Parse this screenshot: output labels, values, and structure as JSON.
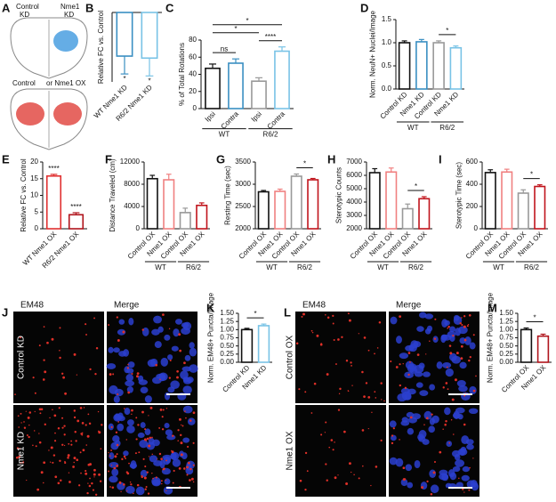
{
  "panel_a": {
    "panel": "A",
    "labels": [
      "Control",
      "KD",
      "Nme1",
      "KD",
      "Control",
      "or Nme1 OX"
    ]
  },
  "panel_j": {
    "panel": "J",
    "columns": [
      "EM48",
      "Merge"
    ],
    "rows": [
      "Control KD",
      "Nme1 KD"
    ]
  },
  "panel_l": {
    "panel": "L",
    "columns": [
      "EM48",
      "Merge"
    ],
    "rows": [
      "Control OX",
      "Nme1 OX"
    ]
  },
  "chart_data": [
    {
      "type": "bar",
      "panel": "B",
      "ylabel": "Relative FC vs. Control",
      "categories": [
        "WT Nme1 KD",
        "R6/2 Nme1 KD"
      ],
      "values": [
        -2.2,
        -2.3
      ],
      "errors": [
        0.9,
        0.9
      ],
      "colors": [
        "#3a8fc2",
        "#79c3e6"
      ],
      "ylim": [
        -3.5,
        0
      ],
      "significance": [
        "*",
        "*"
      ]
    },
    {
      "type": "bar",
      "panel": "C",
      "ylabel": "% of Total Rotations",
      "categories": [
        "Ipsi",
        "Contra",
        "Ipsi",
        "Contra"
      ],
      "values": [
        47,
        53,
        32,
        67
      ],
      "errors": [
        5,
        5,
        4,
        5
      ],
      "colors": [
        "#111111",
        "#3a8fc2",
        "#999999",
        "#79c3e6"
      ],
      "ylim": [
        0,
        80
      ],
      "yticks": [
        0,
        20,
        40,
        60,
        80
      ],
      "groups": [
        {
          "label": "WT",
          "from": 0,
          "to": 1
        },
        {
          "label": "R6/2",
          "from": 2,
          "to": 3
        }
      ],
      "brackets": [
        {
          "from": 0,
          "to": 1,
          "label": "ns"
        },
        {
          "from": 2,
          "to": 3,
          "label": "****"
        },
        {
          "from": 0,
          "to": 2,
          "label": "*"
        },
        {
          "from": 0,
          "to": 3,
          "label": "*"
        }
      ]
    },
    {
      "type": "bar",
      "panel": "D",
      "ylabel": "Norm. NeuN+ Nuclei/Image",
      "categories": [
        "Control KD",
        "Nme1 KD",
        "Control KD",
        "Nme1 KD"
      ],
      "values": [
        1.0,
        1.02,
        1.0,
        0.89
      ],
      "errors": [
        0.04,
        0.05,
        0.04,
        0.04
      ],
      "colors": [
        "#111111",
        "#3a8fc2",
        "#999999",
        "#79c3e6"
      ],
      "ylim": [
        0,
        1.5
      ],
      "yticks": [
        {
          "value": 0,
          "label": "0.0"
        },
        0.5,
        {
          "value": 1,
          "label": "1.0"
        },
        1.5
      ],
      "groups": [
        {
          "label": "WT",
          "from": 0,
          "to": 1
        },
        {
          "label": "R6/2",
          "from": 2,
          "to": 3
        }
      ],
      "brackets": [
        {
          "from": 2,
          "to": 3,
          "label": "*"
        }
      ]
    },
    {
      "type": "bar",
      "panel": "E",
      "ylabel": "Relative FC vs. Control",
      "categories": [
        "WT Nme1 OX",
        "R6/2 Nme1 OX"
      ],
      "values": [
        15.8,
        4.2
      ],
      "errors": [
        0.5,
        0.6
      ],
      "colors": [
        "#e03030",
        "#b0141c"
      ],
      "ylim": [
        0,
        20
      ],
      "yticks": [
        0,
        5,
        10,
        15,
        20
      ],
      "significance": [
        "****",
        "****"
      ]
    },
    {
      "type": "bar",
      "panel": "F",
      "ylabel": "Distance Traveled (cm)",
      "categories": [
        "Control OX",
        "Nme1 OX",
        "Control OX",
        "Nme1 OX"
      ],
      "values": [
        9000,
        8800,
        2900,
        4200
      ],
      "errors": [
        600,
        1000,
        800,
        450
      ],
      "colors": [
        "#111111",
        "#f08080",
        "#999999",
        "#c0141c"
      ],
      "ylim": [
        0,
        12000
      ],
      "yticks": [
        0,
        4000,
        8000,
        12000
      ],
      "groups": [
        {
          "label": "WT",
          "from": 0,
          "to": 1
        },
        {
          "label": "R6/2",
          "from": 2,
          "to": 3
        }
      ]
    },
    {
      "type": "bar",
      "panel": "G",
      "ylabel": "Resting Time (sec)",
      "categories": [
        "Control OX",
        "Nme1 OX",
        "Control OX",
        "Nme1 OX"
      ],
      "values": [
        2830,
        2840,
        3180,
        3100
      ],
      "errors": [
        30,
        50,
        50,
        30
      ],
      "colors": [
        "#111111",
        "#f08080",
        "#999999",
        "#c0141c"
      ],
      "ylim": [
        2000,
        3500
      ],
      "yticks": [
        2000,
        2500,
        3000,
        3500
      ],
      "groups": [
        {
          "label": "WT",
          "from": 0,
          "to": 1
        },
        {
          "label": "R6/2",
          "from": 2,
          "to": 3
        }
      ],
      "brackets": [
        {
          "from": 2,
          "to": 3,
          "label": "*"
        }
      ]
    },
    {
      "type": "bar",
      "panel": "H",
      "ylabel": "Sterotypic Counts",
      "categories": [
        "Control OX",
        "Nme1 OX",
        "Control OX",
        "Nme1 OX"
      ],
      "values": [
        6200,
        6250,
        3500,
        4250
      ],
      "errors": [
        300,
        300,
        350,
        150
      ],
      "colors": [
        "#111111",
        "#f08080",
        "#999999",
        "#c0141c"
      ],
      "ylim": [
        2000,
        7000
      ],
      "yticks": [
        2000,
        3000,
        4000,
        5000,
        6000,
        7000
      ],
      "groups": [
        {
          "label": "WT",
          "from": 0,
          "to": 1
        },
        {
          "label": "R6/2",
          "from": 2,
          "to": 3
        }
      ],
      "brackets": [
        {
          "from": 2,
          "to": 3,
          "label": "*"
        }
      ]
    },
    {
      "type": "bar",
      "panel": "I",
      "ylabel": "Sterotypic Time (sec)",
      "categories": [
        "Control OX",
        "Nme1 OX",
        "Control OX",
        "Nme1 OX"
      ],
      "values": [
        505,
        510,
        320,
        380
      ],
      "errors": [
        25,
        25,
        30,
        15
      ],
      "colors": [
        "#111111",
        "#f08080",
        "#999999",
        "#c0141c"
      ],
      "ylim": [
        0,
        600
      ],
      "yticks": [
        0,
        200,
        400,
        600
      ],
      "groups": [
        {
          "label": "WT",
          "from": 0,
          "to": 1
        },
        {
          "label": "R6/2",
          "from": 2,
          "to": 3
        }
      ],
      "brackets": [
        {
          "from": 2,
          "to": 3,
          "label": "*"
        }
      ]
    },
    {
      "type": "bar",
      "panel": "K",
      "ylabel": "Norm. EM48+ Puncta/Image",
      "categories": [
        "Control KD",
        "Nme1 KD"
      ],
      "values": [
        1.0,
        1.12
      ],
      "errors": [
        0.04,
        0.05
      ],
      "colors": [
        "#111111",
        "#79c3e6"
      ],
      "ylim": [
        0,
        1.5
      ],
      "yticks": [
        {
          "value": 0,
          "label": "0.00"
        },
        0.25,
        {
          "value": 0.5,
          "label": "0.50"
        },
        0.75,
        {
          "value": 1,
          "label": "1.00"
        },
        1.25,
        {
          "value": 1.5,
          "label": "1.50"
        }
      ],
      "brackets": [
        {
          "from": 0,
          "to": 1,
          "label": "*"
        }
      ]
    },
    {
      "type": "bar",
      "panel": "M",
      "ylabel": "Norm. EM48+ Puncta/Image",
      "categories": [
        "Control OX",
        "Nme1 OX"
      ],
      "values": [
        1.0,
        0.8
      ],
      "errors": [
        0.05,
        0.06
      ],
      "colors": [
        "#111111",
        "#b0141c"
      ],
      "ylim": [
        0,
        1.5
      ],
      "yticks": [
        {
          "value": 0,
          "label": "0.00"
        },
        0.25,
        {
          "value": 0.5,
          "label": "0.50"
        },
        0.75,
        {
          "value": 1,
          "label": "1.00"
        },
        1.25,
        {
          "value": 1.5,
          "label": "1.50"
        }
      ],
      "brackets": [
        {
          "from": 0,
          "to": 1,
          "label": "*"
        }
      ]
    }
  ]
}
